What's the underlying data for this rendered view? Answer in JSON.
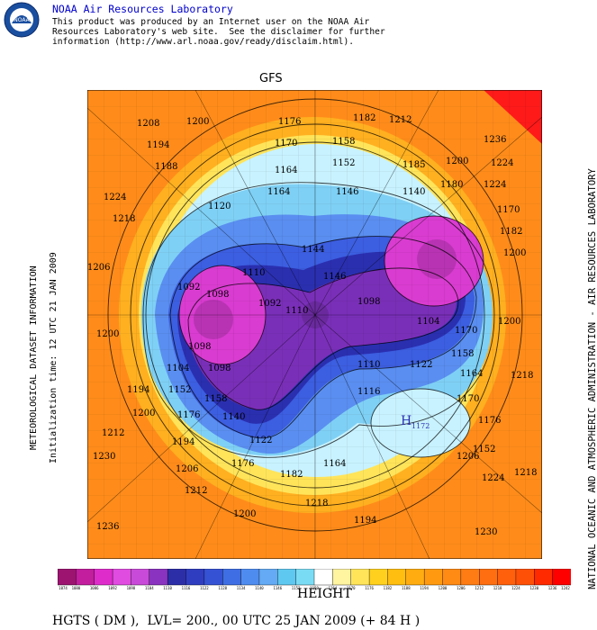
{
  "header": {
    "org_name": "NOAA Air Resources Laboratory",
    "logo_text": "NOAA",
    "disclaimer_lines": [
      "This product was produced by an Internet user on the NOAA Air",
      "Resources Laboratory's web site.  See the disclaimer for further",
      "information (http://www.arl.noaa.gov/ready/disclaim.html)."
    ]
  },
  "map": {
    "model": "GFS",
    "side_left_1": "METEOROLOGICAL DATASET INFORMATION",
    "side_left_2": "Initialization time: 12 UTC 21 JAN 2009",
    "side_right": "NATIONAL OCEANIC AND ATMOSPHERIC ADMINISTRATION - AIR RESOURCES LABORATORY",
    "variable_title": "HEIGHT",
    "caption": "HGTS ( DM ),  LVL= 200., 00 UTC 25 JAN 2009 (+ 84 H )",
    "contour_labels": [
      "1208",
      "1200",
      "1176",
      "1182",
      "1212",
      "1236",
      "1194",
      "1170",
      "1158",
      "1188",
      "1224",
      "1164",
      "1152",
      "1185",
      "1200",
      "1224",
      "1224",
      "1140",
      "1146",
      "1180",
      "1218",
      "1120",
      "1170",
      "1164",
      "1144",
      "1182",
      "1206",
      "1146",
      "1200",
      "1110",
      "1092",
      "1098",
      "1104",
      "1200",
      "1092",
      "1098",
      "1098",
      "1110",
      "1200",
      "1098",
      "1104",
      "1170",
      "1158",
      "1194",
      "1110",
      "1122",
      "1164",
      "1152",
      "1116",
      "1158",
      "1170",
      "1200",
      "1176",
      "1140",
      "1122",
      "1212",
      "1176",
      "1218",
      "1194",
      "1152",
      "1206",
      "1164",
      "1230",
      "1176",
      "1206",
      "1182",
      "1218",
      "1212",
      "1224",
      "1200",
      "1194",
      "1218",
      "1230",
      "1236"
    ],
    "low_marker": "H",
    "low_value": "1172",
    "map_colors": {
      "core": "#b833b3",
      "deep_magenta": "#d93cd0",
      "purple": "#7a2fb8",
      "dark_blue": "#2a2fb0",
      "blue": "#3c5ee0",
      "mid_blue": "#5a8ef0",
      "light_blue": "#7fd0f5",
      "pale_blue": "#c8f2ff",
      "yellow": "#ffe45a",
      "orange": "#ffb020",
      "dark_orange": "#ff8c1a",
      "red_orange": "#ff6a10",
      "red": "#ff1a1a"
    }
  },
  "colorbar": {
    "colors": [
      "#9c1470",
      "#c21e9e",
      "#de2ccb",
      "#e04be0",
      "#c84ad8",
      "#8a33c0",
      "#2c2ea8",
      "#2f3ec0",
      "#3652d4",
      "#3f6ee4",
      "#4f8cf0",
      "#64aaf4",
      "#5fc8f0",
      "#7adcf4",
      "#ffffff",
      "#fff4a0",
      "#ffe45a",
      "#ffd11e",
      "#ffbe10",
      "#ffac10",
      "#ff9a10",
      "#ff8a14",
      "#ff7c14",
      "#ff6e10",
      "#ff600c",
      "#ff5008",
      "#ff2a00",
      "#ff0000"
    ],
    "tick_labels": [
      "1074",
      "1080",
      "1086",
      "1092",
      "1098",
      "1104",
      "1110",
      "1116",
      "1122",
      "1128",
      "1134",
      "1140",
      "1146",
      "1152",
      "1158",
      "1164",
      "1170",
      "1176",
      "1182",
      "1188",
      "1194",
      "1200",
      "1206",
      "1212",
      "1218",
      "1224",
      "1230",
      "1236",
      "1242"
    ]
  }
}
